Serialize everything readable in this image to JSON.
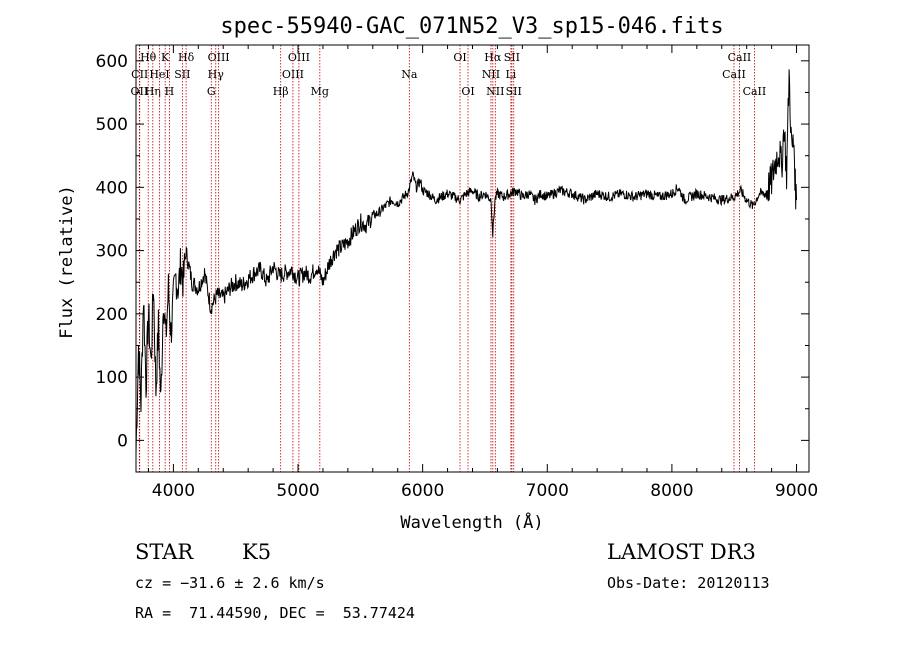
{
  "chart_data": {
    "type": "line",
    "title": "spec-55940-GAC_071N52_V3_sp15-046.fits",
    "xlabel": "Wavelength (Å)",
    "ylabel": "Flux (relative)",
    "xlim": [
      3700,
      9100
    ],
    "ylim": [
      -50,
      625
    ],
    "xticks": [
      4000,
      5000,
      6000,
      7000,
      8000,
      9000
    ],
    "yticks": [
      0,
      100,
      200,
      300,
      400,
      500,
      600
    ],
    "xtick_labels": [
      "4000",
      "5000",
      "6000",
      "7000",
      "8000",
      "9000"
    ],
    "ytick_labels": [
      "0",
      "100",
      "200",
      "300",
      "400",
      "500",
      "600"
    ],
    "series": [
      {
        "name": "spectrum",
        "x": [
          3700,
          3720,
          3740,
          3760,
          3780,
          3800,
          3820,
          3840,
          3860,
          3880,
          3900,
          3920,
          3940,
          3960,
          3980,
          4000,
          4020,
          4040,
          4060,
          4080,
          4100,
          4150,
          4200,
          4250,
          4300,
          4350,
          4400,
          4450,
          4500,
          4550,
          4600,
          4650,
          4700,
          4750,
          4800,
          4850,
          4900,
          4950,
          5000,
          5050,
          5100,
          5150,
          5200,
          5250,
          5300,
          5350,
          5400,
          5450,
          5500,
          5550,
          5600,
          5650,
          5700,
          5750,
          5800,
          5850,
          5890,
          5920,
          5950,
          5980,
          6000,
          6050,
          6100,
          6150,
          6200,
          6250,
          6300,
          6350,
          6400,
          6450,
          6500,
          6550,
          6563,
          6580,
          6600,
          6650,
          6700,
          6750,
          6800,
          6850,
          6900,
          6950,
          7000,
          7100,
          7200,
          7300,
          7400,
          7500,
          7600,
          7700,
          7800,
          7900,
          8000,
          8050,
          8100,
          8200,
          8300,
          8400,
          8500,
          8550,
          8600,
          8650,
          8700,
          8750,
          8800,
          8830,
          8860,
          8880,
          8900,
          8920,
          8940,
          8960,
          8980,
          8990,
          9000
        ],
        "y": [
          -20,
          150,
          60,
          230,
          90,
          200,
          120,
          250,
          80,
          180,
          60,
          230,
          160,
          240,
          170,
          220,
          260,
          240,
          280,
          250,
          300,
          250,
          240,
          265,
          210,
          230,
          225,
          240,
          250,
          245,
          255,
          265,
          270,
          250,
          275,
          260,
          265,
          270,
          255,
          265,
          260,
          275,
          250,
          280,
          300,
          305,
          315,
          330,
          345,
          340,
          355,
          360,
          370,
          380,
          375,
          385,
          395,
          420,
          400,
          410,
          395,
          390,
          380,
          385,
          390,
          385,
          380,
          390,
          395,
          385,
          390,
          380,
          325,
          380,
          390,
          385,
          390,
          395,
          385,
          390,
          380,
          390,
          385,
          395,
          390,
          380,
          390,
          385,
          390,
          385,
          390,
          385,
          390,
          400,
          380,
          390,
          385,
          380,
          385,
          395,
          380,
          370,
          390,
          390,
          410,
          440,
          460,
          430,
          500,
          420,
          580,
          460,
          470,
          400,
          380
        ]
      }
    ],
    "line_markers": [
      {
        "label": "Hθ",
        "x": 3798,
        "row": 1
      },
      {
        "label": "CII",
        "x": 3730,
        "row": 2
      },
      {
        "label": "OII",
        "x": 3727,
        "row": 3
      },
      {
        "label": "Hη",
        "x": 3835,
        "row": 3
      },
      {
        "label": "HeI",
        "x": 3889,
        "row": 2
      },
      {
        "label": "K",
        "x": 3934,
        "row": 1
      },
      {
        "label": "H",
        "x": 3968,
        "row": 3
      },
      {
        "label": "SII",
        "x": 4072,
        "row": 2
      },
      {
        "label": "Hδ",
        "x": 4102,
        "row": 1
      },
      {
        "label": "OIII",
        "x": 4363,
        "row": 1
      },
      {
        "label": "Hγ",
        "x": 4340,
        "row": 2
      },
      {
        "label": "G",
        "x": 4304,
        "row": 3
      },
      {
        "label": "Hβ",
        "x": 4861,
        "row": 3
      },
      {
        "label": "OIII",
        "x": 5007,
        "row": 1
      },
      {
        "label": "OIII",
        "x": 4959,
        "row": 2
      },
      {
        "label": "Mg",
        "x": 5175,
        "row": 3
      },
      {
        "label": "Na",
        "x": 5893,
        "row": 2
      },
      {
        "label": "OI",
        "x": 6300,
        "row": 1
      },
      {
        "label": "OI",
        "x": 6364,
        "row": 3
      },
      {
        "label": "Hα",
        "x": 6563,
        "row": 1
      },
      {
        "label": "NII",
        "x": 6548,
        "row": 2
      },
      {
        "label": "NII",
        "x": 6583,
        "row": 3
      },
      {
        "label": "SII",
        "x": 6716,
        "row": 1
      },
      {
        "label": "Li",
        "x": 6708,
        "row": 2
      },
      {
        "label": "SII",
        "x": 6731,
        "row": 3
      },
      {
        "label": "CaII",
        "x": 8542,
        "row": 1
      },
      {
        "label": "CaII",
        "x": 8498,
        "row": 2
      },
      {
        "label": "CaII",
        "x": 8662,
        "row": 3
      }
    ]
  },
  "info": {
    "class": "STAR",
    "subclass": "K5",
    "survey": "LAMOST DR3",
    "cz": "cz = −31.6 ± 2.6 km/s",
    "obs_date": "Obs-Date: 20120113",
    "coords": "RA =  71.44590, DEC =  53.77424"
  },
  "colors": {
    "marker_line": "#c00000",
    "spectrum": "#000000"
  }
}
